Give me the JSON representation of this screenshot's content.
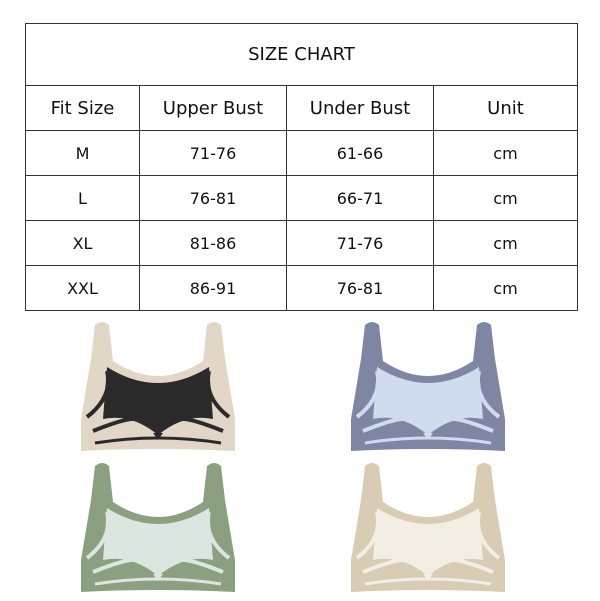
{
  "title": "SIZE CHART",
  "headers": [
    "Fit Size",
    "Upper Bust",
    "Under Bust",
    "Unit"
  ],
  "rows": [
    [
      "M",
      "71-76",
      "61-66",
      "cm"
    ],
    [
      "L",
      "76-81",
      "66-71",
      "cm"
    ],
    [
      "XL",
      "81-86",
      "71-76",
      "cm"
    ],
    [
      "XXL",
      "86-91",
      "76-81",
      "cm"
    ]
  ],
  "products": [
    {
      "band_color": "#e2d7c6",
      "cup_color": "#2a2a2a"
    },
    {
      "band_color": "#7e86a4",
      "cup_color": "#cfdced"
    },
    {
      "band_color": "#8aa080",
      "cup_color": "#dbe6e0"
    },
    {
      "band_color": "#d8ccb4",
      "cup_color": "#f3eee3"
    }
  ]
}
